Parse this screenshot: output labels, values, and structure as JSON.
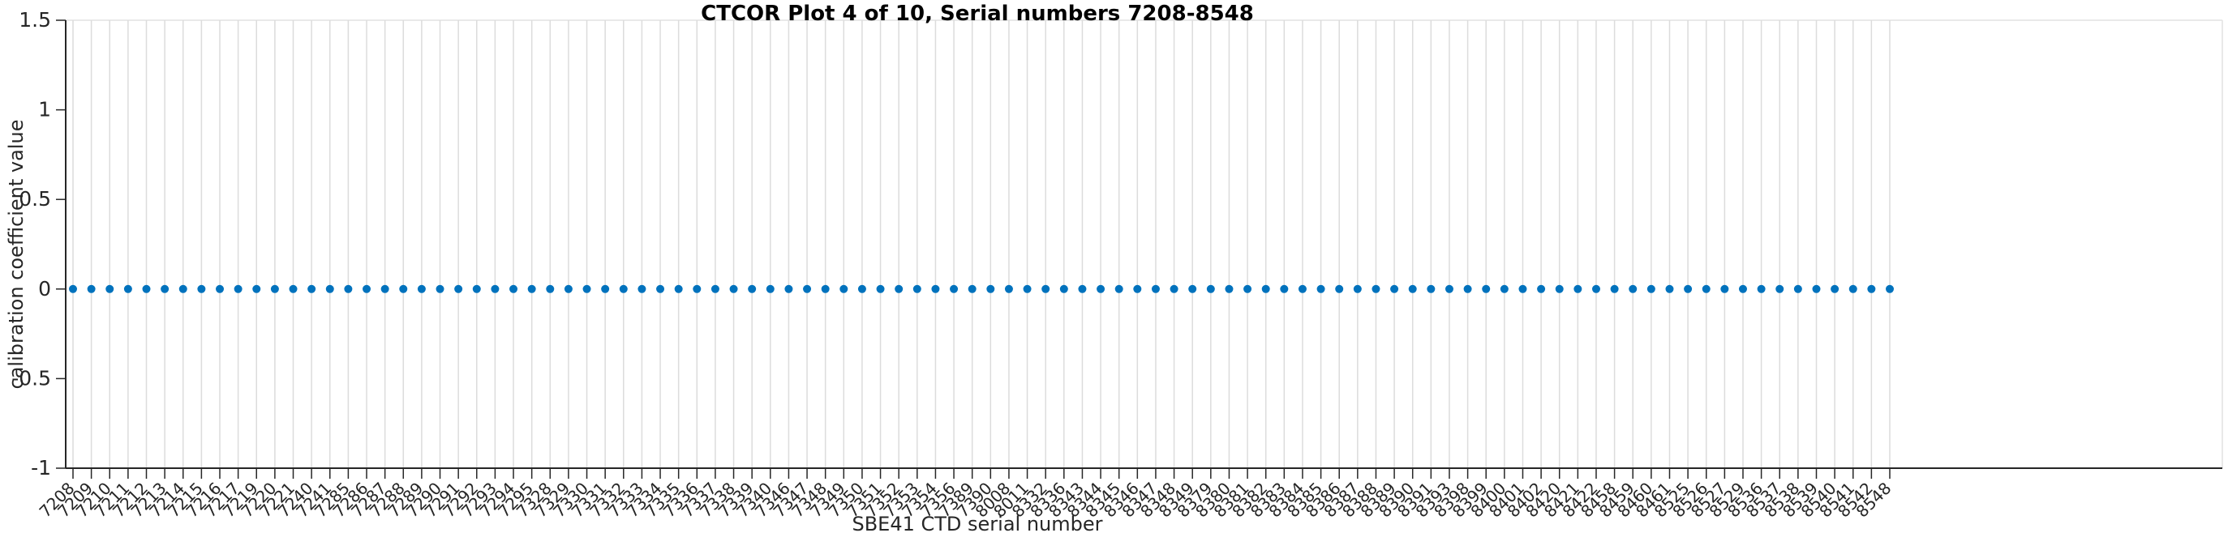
{
  "chart_data": {
    "type": "scatter",
    "title": "CTCOR Plot 4 of 10, Serial numbers 7208-8548",
    "xlabel": "SBE41 CTD serial number",
    "ylabel": "calibration coefficient value",
    "categories": [
      "7208",
      "7209",
      "7210",
      "7211",
      "7212",
      "7213",
      "7214",
      "7215",
      "7216",
      "7217",
      "7219",
      "7220",
      "7221",
      "7240",
      "7241",
      "7285",
      "7286",
      "7287",
      "7288",
      "7289",
      "7290",
      "7291",
      "7292",
      "7293",
      "7294",
      "7295",
      "7328",
      "7329",
      "7330",
      "7331",
      "7332",
      "7333",
      "7334",
      "7335",
      "7336",
      "7337",
      "7338",
      "7339",
      "7340",
      "7346",
      "7347",
      "7348",
      "7349",
      "7350",
      "7351",
      "7352",
      "7353",
      "7354",
      "7356",
      "7389",
      "7390",
      "8008",
      "8011",
      "8332",
      "8336",
      "8343",
      "8344",
      "8345",
      "8346",
      "8347",
      "8348",
      "8349",
      "8379",
      "8380",
      "8381",
      "8382",
      "8383",
      "8384",
      "8385",
      "8386",
      "8387",
      "8388",
      "8389",
      "8390",
      "8391",
      "8393",
      "8398",
      "8399",
      "8400",
      "8401",
      "8402",
      "8420",
      "8421",
      "8422",
      "8458",
      "8459",
      "8460",
      "8461",
      "8525",
      "8526",
      "8527",
      "8529",
      "8536",
      "8537",
      "8538",
      "8539",
      "8540",
      "8541",
      "8542",
      "8548"
    ],
    "values": [
      0,
      0,
      0,
      0,
      0,
      0,
      0,
      0,
      0,
      0,
      0,
      0,
      0,
      0,
      0,
      0,
      0,
      0,
      0,
      0,
      0,
      0,
      0,
      0,
      0,
      0,
      0,
      0,
      0,
      0,
      0,
      0,
      0,
      0,
      0,
      0,
      0,
      0,
      0,
      0,
      0,
      0,
      0,
      0,
      0,
      0,
      0,
      0,
      0,
      0,
      0,
      0,
      0,
      0,
      0,
      0,
      0,
      0,
      0,
      0,
      0,
      0,
      0,
      0,
      0,
      0,
      0,
      0,
      0,
      0,
      0,
      0,
      0,
      0,
      0,
      0,
      0,
      0,
      0,
      0,
      0,
      0,
      0,
      0,
      0,
      0,
      0,
      0,
      0,
      0,
      0,
      0,
      0,
      0,
      0,
      0,
      0,
      0,
      0,
      0
    ],
    "ylim": [
      -1,
      1.5
    ],
    "yticks": [
      1.5,
      1,
      0.5,
      0,
      -0.5,
      -1
    ],
    "ytick_labels": [
      "1.5",
      "1",
      "0.5",
      "0",
      "-0.5",
      "-1"
    ],
    "x_tick_rotation_deg": 45,
    "grid": "vertical-only",
    "legend_position": "none",
    "marker": {
      "shape": "circle",
      "color": "#0072BD",
      "radius": 5
    },
    "colors": {
      "marker": "#0072BD",
      "axis": "#262626",
      "grid": "#DCDCDC",
      "box_light": "#E2E2E2",
      "title": "#000000",
      "tick_label": "#262626"
    }
  }
}
